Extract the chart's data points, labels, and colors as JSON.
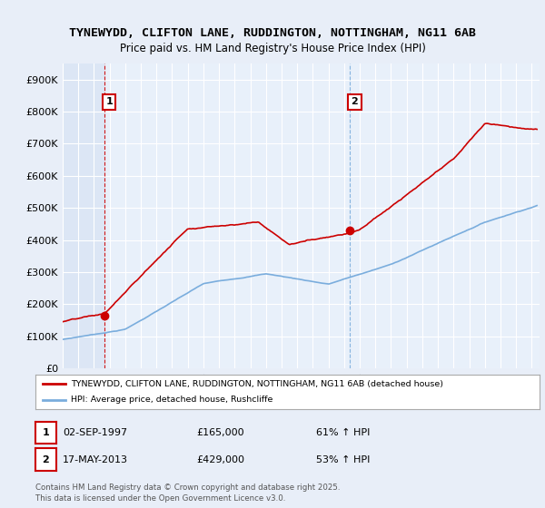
{
  "title_line1": "TYNEWYDD, CLIFTON LANE, RUDDINGTON, NOTTINGHAM, NG11 6AB",
  "title_line2": "Price paid vs. HM Land Registry's House Price Index (HPI)",
  "bg_color": "#e8eef8",
  "plot_bg_color": "#dce6f5",
  "plot_bg_right": "#e8f0fa",
  "grid_color": "#ffffff",
  "house_color": "#cc0000",
  "hpi_color": "#7aaddd",
  "sale1_date_x": 1997.67,
  "sale1_price": 165000,
  "sale2_date_x": 2013.37,
  "sale2_price": 429000,
  "vline1_color": "#cc0000",
  "vline2_color": "#7aaddd",
  "xmin": 1995,
  "xmax": 2025.5,
  "ymin": 0,
  "ymax": 950000,
  "yticks": [
    0,
    100000,
    200000,
    300000,
    400000,
    500000,
    600000,
    700000,
    800000,
    900000
  ],
  "ytick_labels": [
    "£0",
    "£100K",
    "£200K",
    "£300K",
    "£400K",
    "£500K",
    "£600K",
    "£700K",
    "£800K",
    "£900K"
  ],
  "legend_label1": "TYNEWYDD, CLIFTON LANE, RUDDINGTON, NOTTINGHAM, NG11 6AB (detached house)",
  "legend_label2": "HPI: Average price, detached house, Rushcliffe",
  "note1_date": "02-SEP-1997",
  "note1_price": "£165,000",
  "note1_pct": "61% ↑ HPI",
  "note2_date": "17-MAY-2013",
  "note2_price": "£429,000",
  "note2_pct": "53% ↑ HPI",
  "footer": "Contains HM Land Registry data © Crown copyright and database right 2025.\nThis data is licensed under the Open Government Licence v3.0."
}
